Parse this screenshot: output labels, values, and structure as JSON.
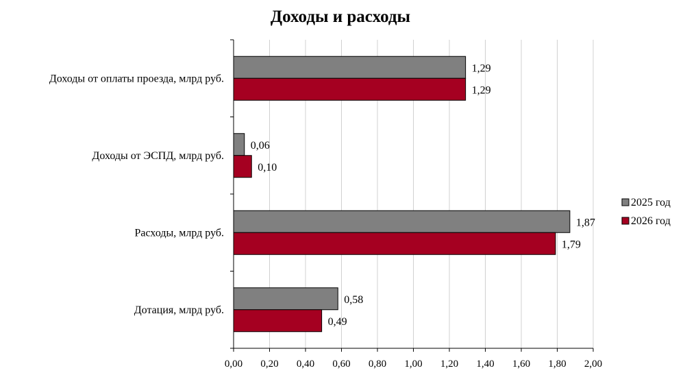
{
  "chart_data": {
    "type": "bar",
    "orientation": "horizontal",
    "title": "Доходы и расходы",
    "categories": [
      "Доходы от оплаты проезда, млрд руб.",
      "Доходы от ЭСПД, млрд руб.",
      "Расходы, млрд руб.",
      "Дотация, млрд руб."
    ],
    "series": [
      {
        "name": "2025 год",
        "color": "#808080",
        "values": [
          1.29,
          0.06,
          1.87,
          0.58
        ],
        "labels": [
          "1,29",
          "0,06",
          "1,87",
          "0,58"
        ]
      },
      {
        "name": "2026 год",
        "color": "#a50021",
        "values": [
          1.29,
          0.1,
          1.79,
          0.49
        ],
        "labels": [
          "1,29",
          "0,10",
          "1,79",
          "0,49"
        ]
      }
    ],
    "xlim": [
      0,
      2
    ],
    "xticks": [
      0,
      0.2,
      0.4,
      0.6,
      0.8,
      1.0,
      1.2,
      1.4,
      1.6,
      1.8,
      2.0
    ],
    "xtick_labels": [
      "0,00",
      "0,20",
      "0,40",
      "0,60",
      "0,80",
      "1,00",
      "1,20",
      "1,40",
      "1,60",
      "1,80",
      "2,00"
    ],
    "xlabel": "",
    "ylabel": "",
    "grid": "vertical",
    "legend_position": "right"
  }
}
